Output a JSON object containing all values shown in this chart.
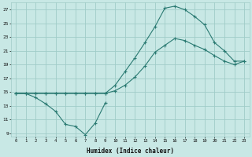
{
  "xlabel": "Humidex (Indice chaleur)",
  "x_ticks": [
    0,
    1,
    2,
    3,
    4,
    5,
    6,
    7,
    8,
    9,
    10,
    11,
    12,
    13,
    14,
    15,
    16,
    17,
    18,
    19,
    20,
    21,
    22,
    23
  ],
  "y_ticks": [
    9,
    11,
    13,
    15,
    17,
    19,
    21,
    23,
    25,
    27
  ],
  "ylim": [
    8.5,
    28.0
  ],
  "xlim": [
    -0.5,
    23.5
  ],
  "background_color": "#c8e8e5",
  "grid_color": "#a0ccc8",
  "line_color": "#2a7a72",
  "line1_x": [
    0,
    1,
    2,
    3,
    4,
    5,
    6,
    7,
    8,
    9
  ],
  "line1_y": [
    14.8,
    14.8,
    14.2,
    13.3,
    12.2,
    10.3,
    10.0,
    8.8,
    10.5,
    13.4
  ],
  "line2_x": [
    0,
    1,
    2,
    3,
    4,
    5,
    6,
    7,
    8,
    9,
    10,
    11,
    12,
    13,
    14,
    15,
    16,
    17,
    18,
    19,
    20,
    21,
    22,
    23
  ],
  "line2_y": [
    14.8,
    14.8,
    14.8,
    14.8,
    14.8,
    14.8,
    14.8,
    14.8,
    14.8,
    14.8,
    15.2,
    16.0,
    17.2,
    18.8,
    20.8,
    21.8,
    22.8,
    22.5,
    21.8,
    21.2,
    20.3,
    19.5,
    19.0,
    19.5
  ],
  "line3_x": [
    0,
    1,
    2,
    3,
    4,
    5,
    6,
    7,
    8,
    9,
    10,
    11,
    12,
    13,
    14,
    15,
    16,
    17,
    18,
    19,
    20,
    21,
    22,
    23
  ],
  "line3_y": [
    14.8,
    14.8,
    14.8,
    14.8,
    14.8,
    14.8,
    14.8,
    14.8,
    14.8,
    14.8,
    16.0,
    18.0,
    20.0,
    22.2,
    24.5,
    27.2,
    27.5,
    27.0,
    26.0,
    24.8,
    22.2,
    21.0,
    19.5,
    19.5
  ]
}
